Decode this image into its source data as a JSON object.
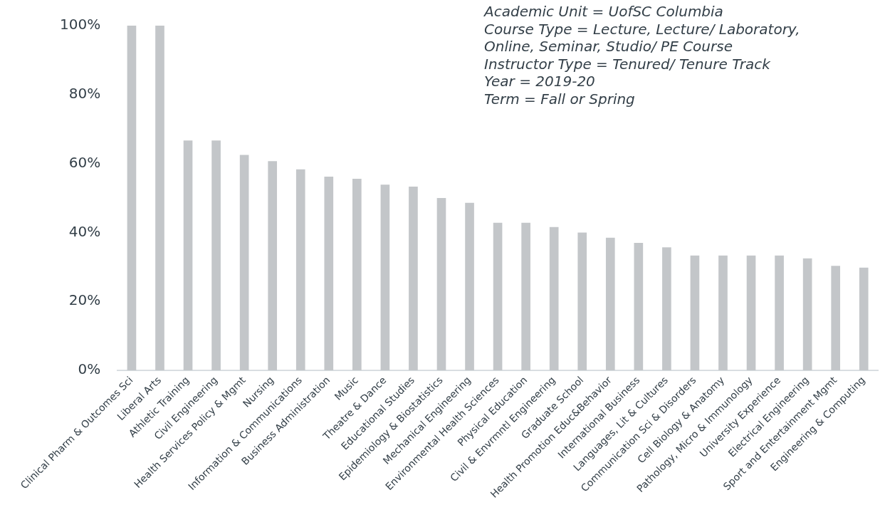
{
  "chart_data": {
    "type": "bar",
    "categories": [
      "Clinical Pharm & Outcomes Sci",
      "Liberal Arts",
      "Athletic Training",
      "Civil Engineering",
      "Health Services Policy & Mgmt",
      "Nursing",
      "Information & Communications",
      "Business Administration",
      "Music",
      "Theatre & Dance",
      "Educational Studies",
      "Epidemiology & Biostatistics",
      "Mechanical Engineering",
      "Environmental Health Sciences",
      "Physical Education",
      "Civil & Envrmntl Engineering",
      "Graduate School",
      "Health Promotion Educ&Behavior",
      "International Business",
      "Languages, Lit & Cultures",
      "Communication Sci & Disorders",
      "Cell Biology & Anatomy",
      "Pathology, Micro & Immunology",
      "University Experience",
      "Electrical Engineering",
      "Sport and Entertainment Mgmt",
      "Engineering & Computing"
    ],
    "values": [
      100,
      100,
      66.7,
      66.7,
      62.5,
      60.7,
      58.3,
      56.2,
      55.6,
      53.9,
      53.3,
      50,
      48.6,
      42.8,
      42.8,
      41.6,
      40,
      38.5,
      37,
      35.7,
      33.3,
      33.3,
      33.3,
      33.3,
      32.5,
      30.3,
      29.8
    ],
    "color": "#c3c6c9",
    "ylim": [
      0,
      100
    ],
    "yticks": [
      {
        "value": 0,
        "label": "0%"
      },
      {
        "value": 20,
        "label": "20%"
      },
      {
        "value": 40,
        "label": "40%"
      },
      {
        "value": 60,
        "label": "60%"
      },
      {
        "value": 80,
        "label": "80%"
      },
      {
        "value": 100,
        "label": "100%"
      }
    ],
    "grid": false,
    "legend": false,
    "annotations": [
      "Academic Unit = UofSC Columbia",
      "Course Type = Lecture, Lecture/ Laboratory,",
      "Online, Seminar, Studio/ PE Course",
      "Instructor Type = Tenured/ Tenure Track",
      "Year = 2019-20",
      "Term = Fall or Spring"
    ]
  }
}
